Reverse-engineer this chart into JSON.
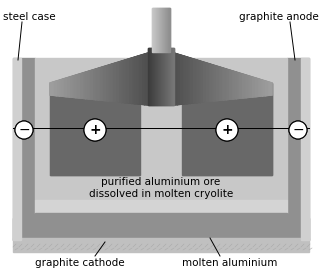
{
  "bg_color": "#ffffff",
  "c_dark_gray": "#686868",
  "c_mid_gray": "#909090",
  "c_light_gray": "#b8b8b8",
  "c_lighter_gray": "#c8c8c8",
  "c_wall_light": "#d0d0d0",
  "c_white": "#ffffff",
  "c_black": "#000000",
  "c_stem_light": "#e8e8e8",
  "c_cathode_light": "#d4d4d4",
  "c_bottom_texture": "#c0c0c0",
  "text_color": "#000000",
  "label_steel_case": "steel case",
  "label_graphite_anode": "graphite anode",
  "label_graphite_cathode": "graphite cathode",
  "label_molten_aluminium": "molten aluminium",
  "label_purified": "purified aluminium ore\ndissolved in molten cryolite"
}
